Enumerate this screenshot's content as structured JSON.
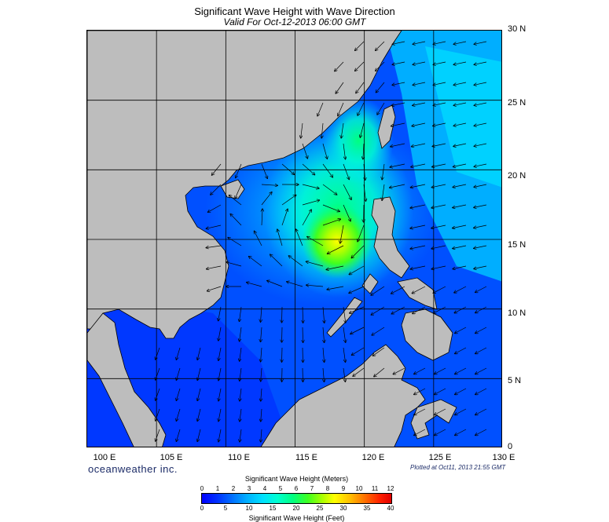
{
  "title": "Significant Wave Height with Wave Direction",
  "subtitle": "Valid For Oct-12-2013 06:00 GMT",
  "lat_labels": [
    "30 N",
    "25 N",
    "20 N",
    "15 N",
    "10 N",
    "5 N",
    "0"
  ],
  "lon_labels": [
    "100 E",
    "105 E",
    "110 E",
    "115 E",
    "120 E",
    "125 E",
    "130 E"
  ],
  "brand": "oceanweather inc.",
  "plotted": "Plotted at Oct11, 2013 21:55 GMT",
  "colorbar": {
    "meters_title": "Significant Wave Height (Meters)",
    "feet_title": "Significant Wave Height (Feet)",
    "meters_ticks": [
      "0",
      "1",
      "2",
      "3",
      "4",
      "5",
      "6",
      "7",
      "8",
      "9",
      "10",
      "11",
      "12"
    ],
    "feet_ticks": [
      "0",
      "5",
      "10",
      "15",
      "20",
      "25",
      "30",
      "35",
      "40"
    ]
  },
  "map": {
    "domain": {
      "lon": [
        100,
        130
      ],
      "lat": [
        0,
        30
      ]
    },
    "gridlines": {
      "lon": [
        105,
        110,
        115,
        120,
        125
      ],
      "lat": [
        5,
        10,
        15,
        20,
        25
      ]
    },
    "land_color": "#bdbdbd",
    "peak_wave": {
      "lon": 117.3,
      "lat": 15.7,
      "meters": 7.5
    }
  }
}
